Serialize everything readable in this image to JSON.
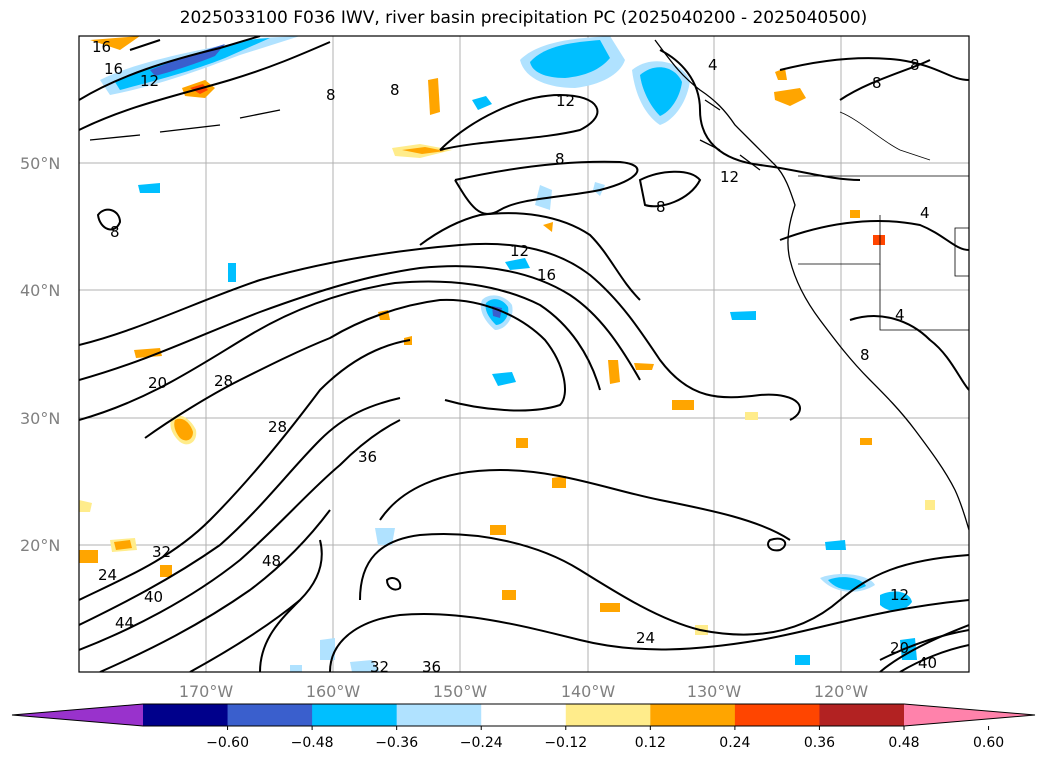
{
  "title": "2025033100 F036 IWV, river basin precipitation PC (2025040200 - 2025040500)",
  "map": {
    "lat_labels": [
      "50°N",
      "40°N",
      "30°N",
      "20°N"
    ],
    "lon_labels": [
      "170°W",
      "160°W",
      "150°W",
      "140°W",
      "130°W",
      "120°W"
    ],
    "lon_range": [
      -180,
      -110
    ],
    "lat_range": [
      10,
      60
    ],
    "grid": true
  },
  "contour_labels": [
    "16",
    "16",
    "12",
    "8",
    "8",
    "12",
    "8",
    "8",
    "12",
    "8",
    "8",
    "4",
    "4",
    "8",
    "12",
    "16",
    "20",
    "28",
    "28",
    "36",
    "32",
    "24",
    "40",
    "44",
    "48",
    "24",
    "32",
    "36",
    "12",
    "20",
    "40",
    "4",
    "8"
  ],
  "colorbar": {
    "ticks": [
      "−0.60",
      "−0.48",
      "−0.36",
      "−0.24",
      "−0.12",
      "0.12",
      "0.24",
      "0.36",
      "0.48",
      "0.60"
    ],
    "colors": [
      "#9932cc",
      "#00008b",
      "#3a5fcd",
      "#00bfff",
      "#b0e2ff",
      "#ffffff",
      "#ffec8b",
      "#ffa500",
      "#ff4500",
      "#b22222",
      "#ff82ab"
    ]
  }
}
